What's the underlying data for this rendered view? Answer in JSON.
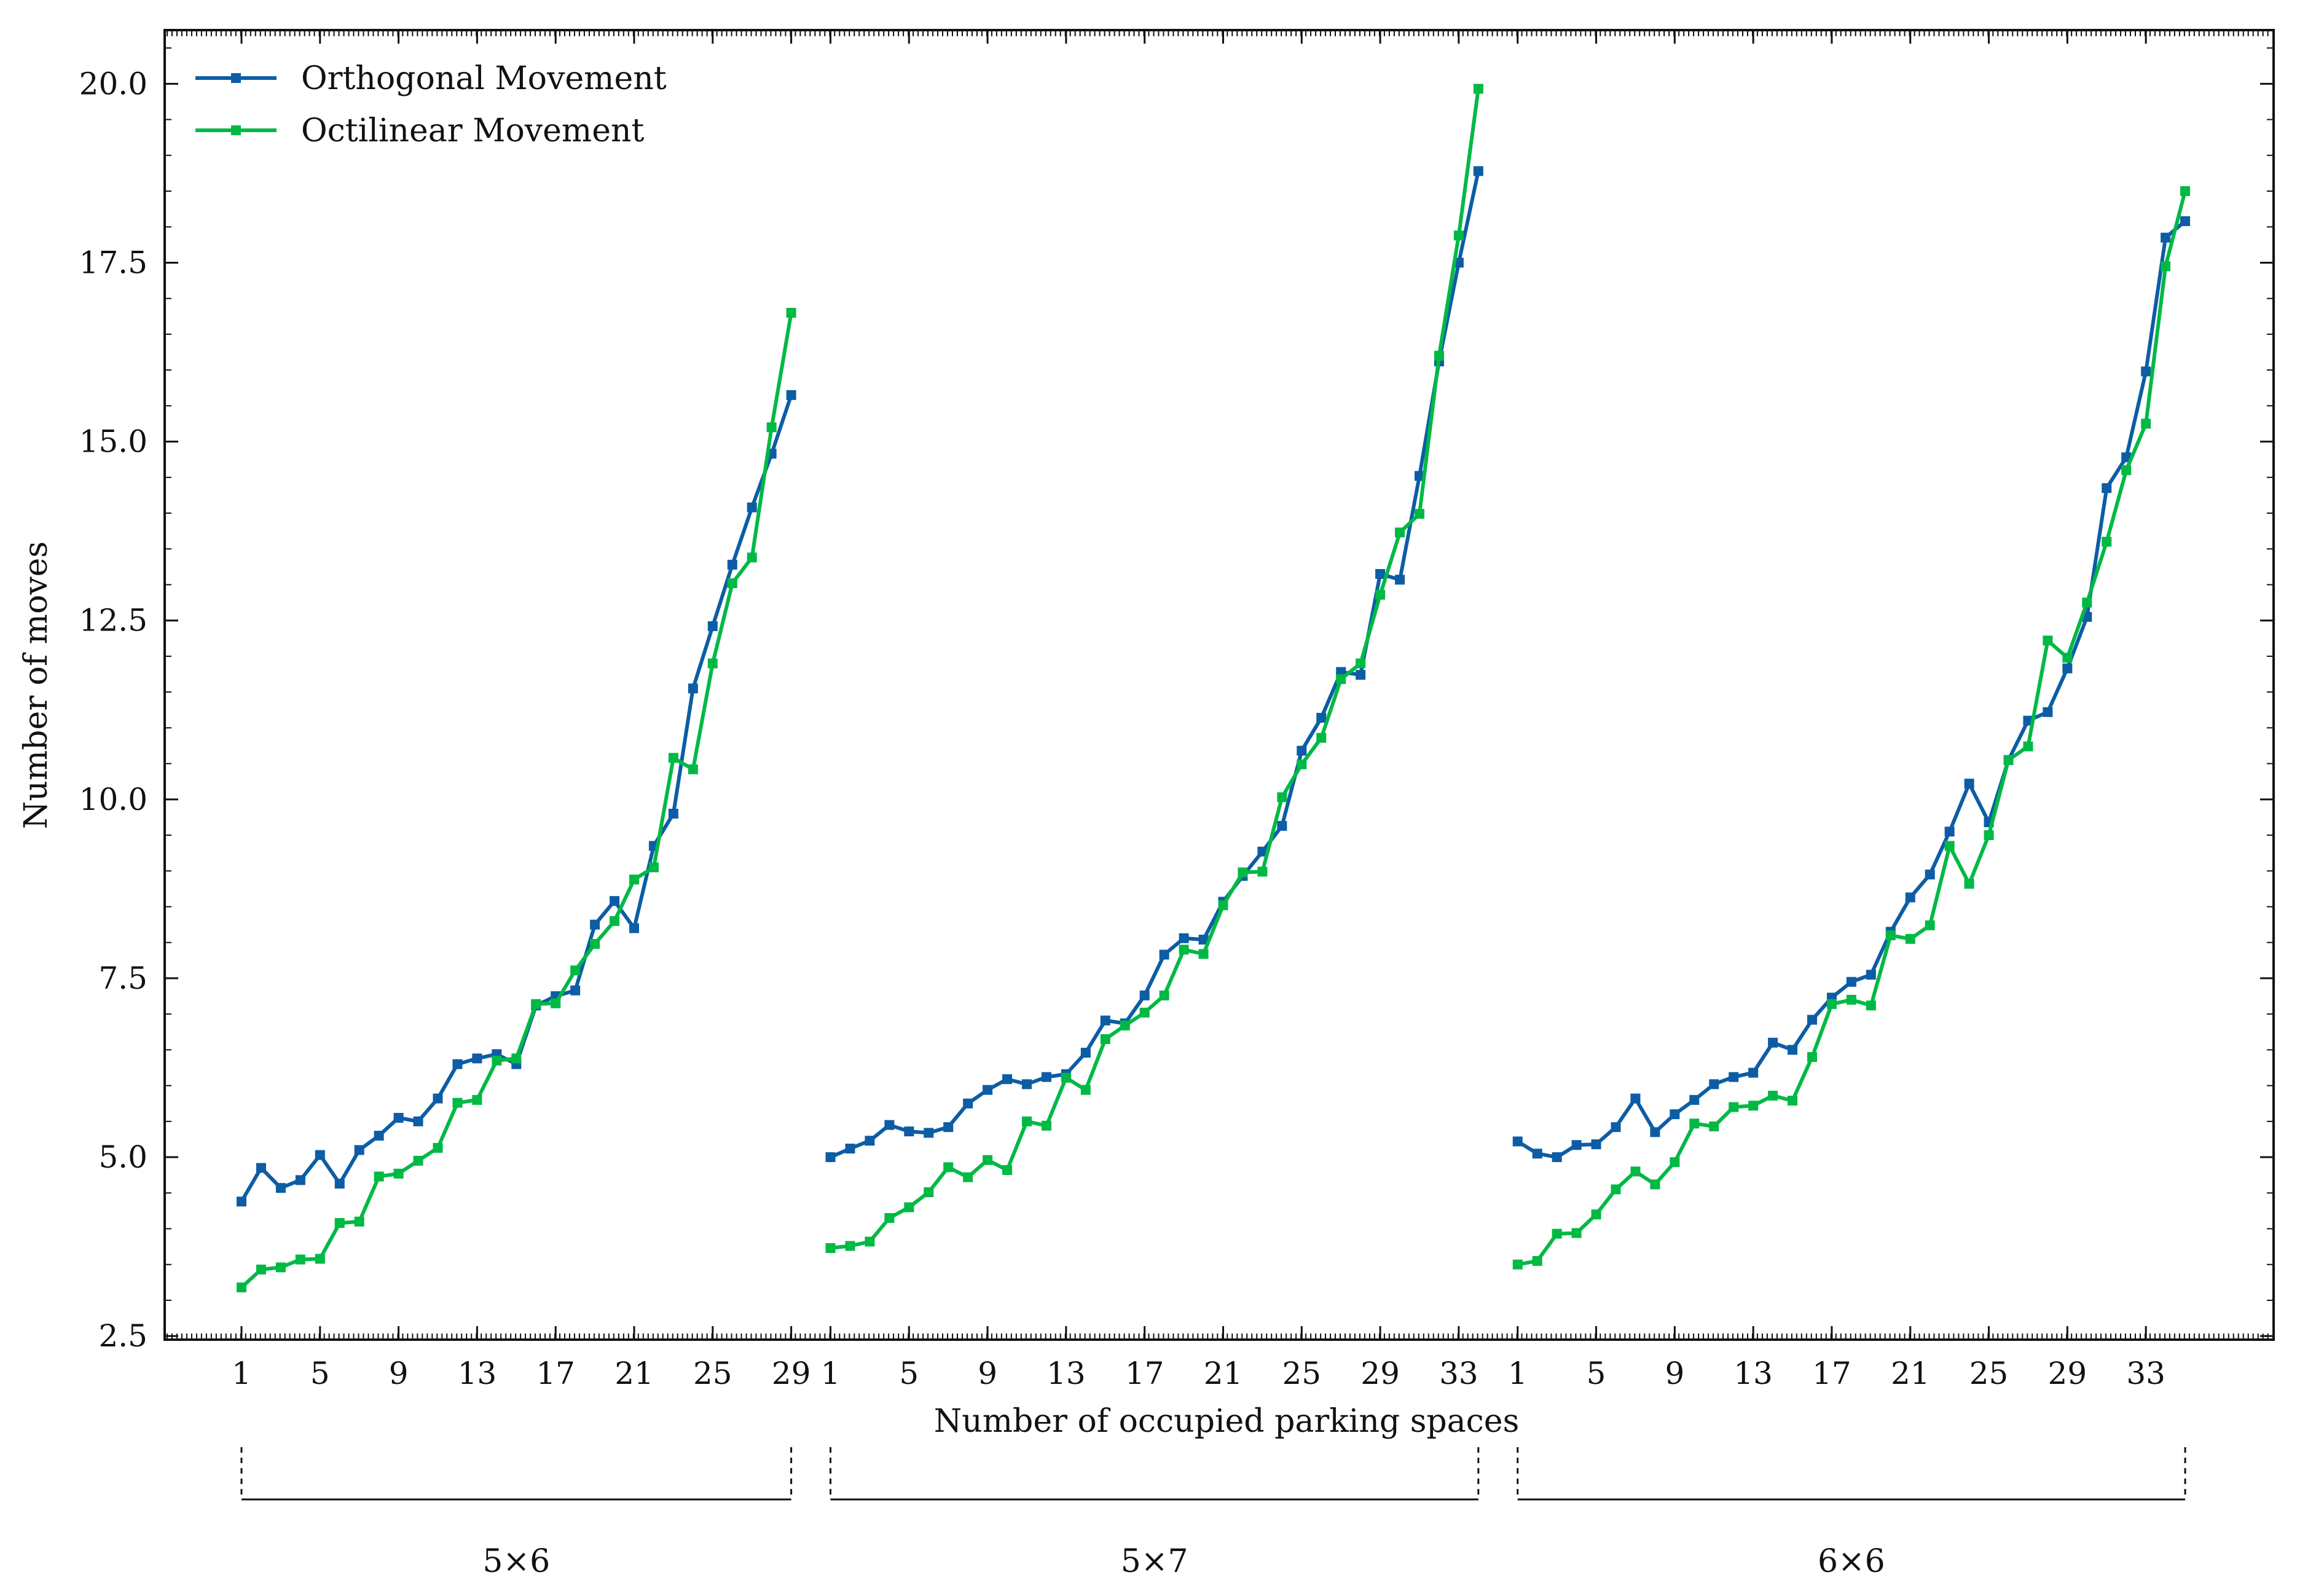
{
  "chart_data": {
    "type": "line",
    "xlabel": "Number of occupied parking spaces",
    "ylabel": "Number of moves",
    "ylim": [
      2.45,
      20.75
    ],
    "yticks": [
      "2.5",
      "5.0",
      "7.5",
      "10.0",
      "12.5",
      "15.0",
      "17.5",
      "20.0"
    ],
    "grid": false,
    "legend_position": "top-left",
    "colors": {
      "Orthogonal Movement": "#0c5da5",
      "Octilinear Movement": "#00b945"
    },
    "groups": [
      {
        "label": "5×6",
        "x_ticks": [
          1,
          5,
          9,
          13,
          17,
          21,
          25,
          29
        ],
        "x": [
          1,
          2,
          3,
          4,
          5,
          6,
          7,
          8,
          9,
          10,
          11,
          12,
          13,
          14,
          15,
          16,
          17,
          18,
          19,
          20,
          21,
          22,
          23,
          24,
          25,
          26,
          27,
          28,
          29
        ],
        "series": [
          {
            "name": "Orthogonal Movement",
            "values": [
              4.38,
              4.85,
              4.57,
              4.68,
              5.03,
              4.63,
              5.1,
              5.3,
              5.55,
              5.5,
              5.82,
              6.3,
              6.38,
              6.44,
              6.3,
              7.12,
              7.25,
              7.33,
              8.25,
              8.58,
              8.2,
              9.35,
              9.8,
              11.55,
              12.42,
              13.28,
              14.08,
              14.83,
              15.65
            ]
          },
          {
            "name": "Octilinear Movement",
            "values": [
              3.18,
              3.43,
              3.46,
              3.57,
              3.58,
              4.08,
              4.1,
              4.73,
              4.77,
              4.95,
              5.13,
              5.76,
              5.8,
              6.35,
              6.38,
              7.14,
              7.15,
              7.61,
              7.98,
              8.3,
              8.88,
              9.05,
              10.58,
              10.42,
              11.9,
              13.02,
              13.38,
              15.2,
              16.8
            ]
          }
        ]
      },
      {
        "label": "5×7",
        "x_ticks": [
          1,
          5,
          9,
          13,
          17,
          21,
          25,
          29,
          33
        ],
        "x": [
          1,
          2,
          3,
          4,
          5,
          6,
          7,
          8,
          9,
          10,
          11,
          12,
          13,
          14,
          15,
          16,
          17,
          18,
          19,
          20,
          21,
          22,
          23,
          24,
          25,
          26,
          27,
          28,
          29,
          30,
          31,
          32,
          33,
          34
        ],
        "series": [
          {
            "name": "Orthogonal Movement",
            "values": [
              5.0,
              5.12,
              5.23,
              5.45,
              5.36,
              5.34,
              5.42,
              5.75,
              5.94,
              6.09,
              6.02,
              6.12,
              6.16,
              6.46,
              6.91,
              6.87,
              7.26,
              7.83,
              8.06,
              8.04,
              8.57,
              8.93,
              9.27,
              9.63,
              10.68,
              11.14,
              11.78,
              11.74,
              13.15,
              13.07,
              14.52,
              16.12,
              17.5,
              18.78
            ]
          },
          {
            "name": "Octilinear Movement",
            "values": [
              3.73,
              3.76,
              3.82,
              4.15,
              4.3,
              4.51,
              4.86,
              4.72,
              4.96,
              4.82,
              5.5,
              5.44,
              6.11,
              5.94,
              6.65,
              6.84,
              7.02,
              7.26,
              7.9,
              7.84,
              8.52,
              8.98,
              8.99,
              10.03,
              10.49,
              10.86,
              11.68,
              11.9,
              12.86,
              13.73,
              13.99,
              16.2,
              17.88,
              19.93
            ]
          }
        ]
      },
      {
        "label": "6×6",
        "x_ticks": [
          1,
          5,
          9,
          13,
          17,
          21,
          25,
          29,
          33
        ],
        "x": [
          1,
          2,
          3,
          4,
          5,
          6,
          7,
          8,
          9,
          10,
          11,
          12,
          13,
          14,
          15,
          16,
          17,
          18,
          19,
          20,
          21,
          22,
          23,
          24,
          25,
          26,
          27,
          28,
          29,
          30,
          31,
          32,
          33,
          34,
          35
        ],
        "series": [
          {
            "name": "Orthogonal Movement",
            "values": [
              5.22,
              5.05,
              5.0,
              5.17,
              5.18,
              5.42,
              5.82,
              5.35,
              5.6,
              5.8,
              6.02,
              6.12,
              6.18,
              6.6,
              6.5,
              6.92,
              7.23,
              7.45,
              7.55,
              8.15,
              8.63,
              8.95,
              9.55,
              10.22,
              9.68,
              10.55,
              11.1,
              11.22,
              11.83,
              12.55,
              14.35,
              14.78,
              15.98,
              17.85,
              18.08
            ]
          },
          {
            "name": "Octilinear Movement",
            "values": [
              3.5,
              3.55,
              3.93,
              3.94,
              4.2,
              4.55,
              4.8,
              4.62,
              4.93,
              5.47,
              5.43,
              5.7,
              5.72,
              5.86,
              5.79,
              6.4,
              7.14,
              7.2,
              7.12,
              8.1,
              8.05,
              8.24,
              9.35,
              8.82,
              9.5,
              10.55,
              10.74,
              12.22,
              11.98,
              12.75,
              13.6,
              14.6,
              15.25,
              17.45,
              18.5
            ]
          }
        ]
      }
    ]
  }
}
